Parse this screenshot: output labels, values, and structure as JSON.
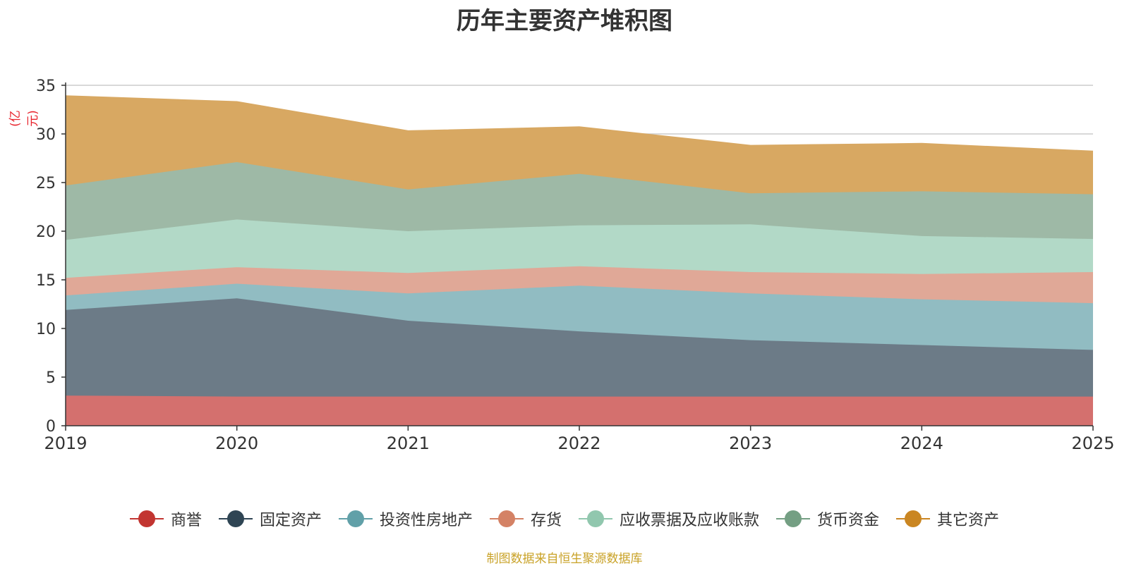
{
  "chart_data": {
    "type": "area",
    "stacked": true,
    "title": "历年主要资产堆积图",
    "ylabel": "(亿元)",
    "xlabel": "",
    "x": [
      "2019",
      "2020",
      "2021",
      "2022",
      "2023",
      "2024",
      "2025"
    ],
    "ylim": [
      0,
      35
    ],
    "yticks": [
      "0",
      "5",
      "10",
      "15",
      "20",
      "25",
      "30",
      "35"
    ],
    "grid": true,
    "legend_position": "bottom",
    "series": [
      {
        "name": "商誉",
        "color": "#c23531",
        "fill": "#d4706e",
        "values": [
          3.1,
          3.0,
          3.0,
          3.0,
          3.0,
          3.0,
          3.0
        ]
      },
      {
        "name": "固定资产",
        "color": "#2f4554",
        "fill": "#6c7b87",
        "values": [
          8.8,
          10.1,
          7.8,
          6.7,
          5.8,
          5.3,
          4.8
        ]
      },
      {
        "name": "投资性房地产",
        "color": "#61a0a8",
        "fill": "#91bcc2",
        "values": [
          1.5,
          1.5,
          2.8,
          4.7,
          4.8,
          4.7,
          4.8
        ]
      },
      {
        "name": "存货",
        "color": "#d48265",
        "fill": "#e0a897",
        "values": [
          1.8,
          1.7,
          2.1,
          2.0,
          2.2,
          2.6,
          3.2
        ]
      },
      {
        "name": "应收票据及应收账款",
        "color": "#91c7ae",
        "fill": "#b2d9c7",
        "values": [
          3.9,
          4.9,
          4.3,
          4.2,
          4.9,
          3.9,
          3.4
        ]
      },
      {
        "name": "货币资金",
        "color": "#749f83",
        "fill": "#9eb9a6",
        "values": [
          5.6,
          5.9,
          4.3,
          5.3,
          3.2,
          4.6,
          4.6
        ]
      },
      {
        "name": "其它资产",
        "color": "#ca8622",
        "fill": "#d8a862",
        "values": [
          9.2,
          6.2,
          6.0,
          4.8,
          4.9,
          4.9,
          4.4
        ]
      }
    ]
  },
  "source_note": "制图数据来自恒生聚源数据库"
}
